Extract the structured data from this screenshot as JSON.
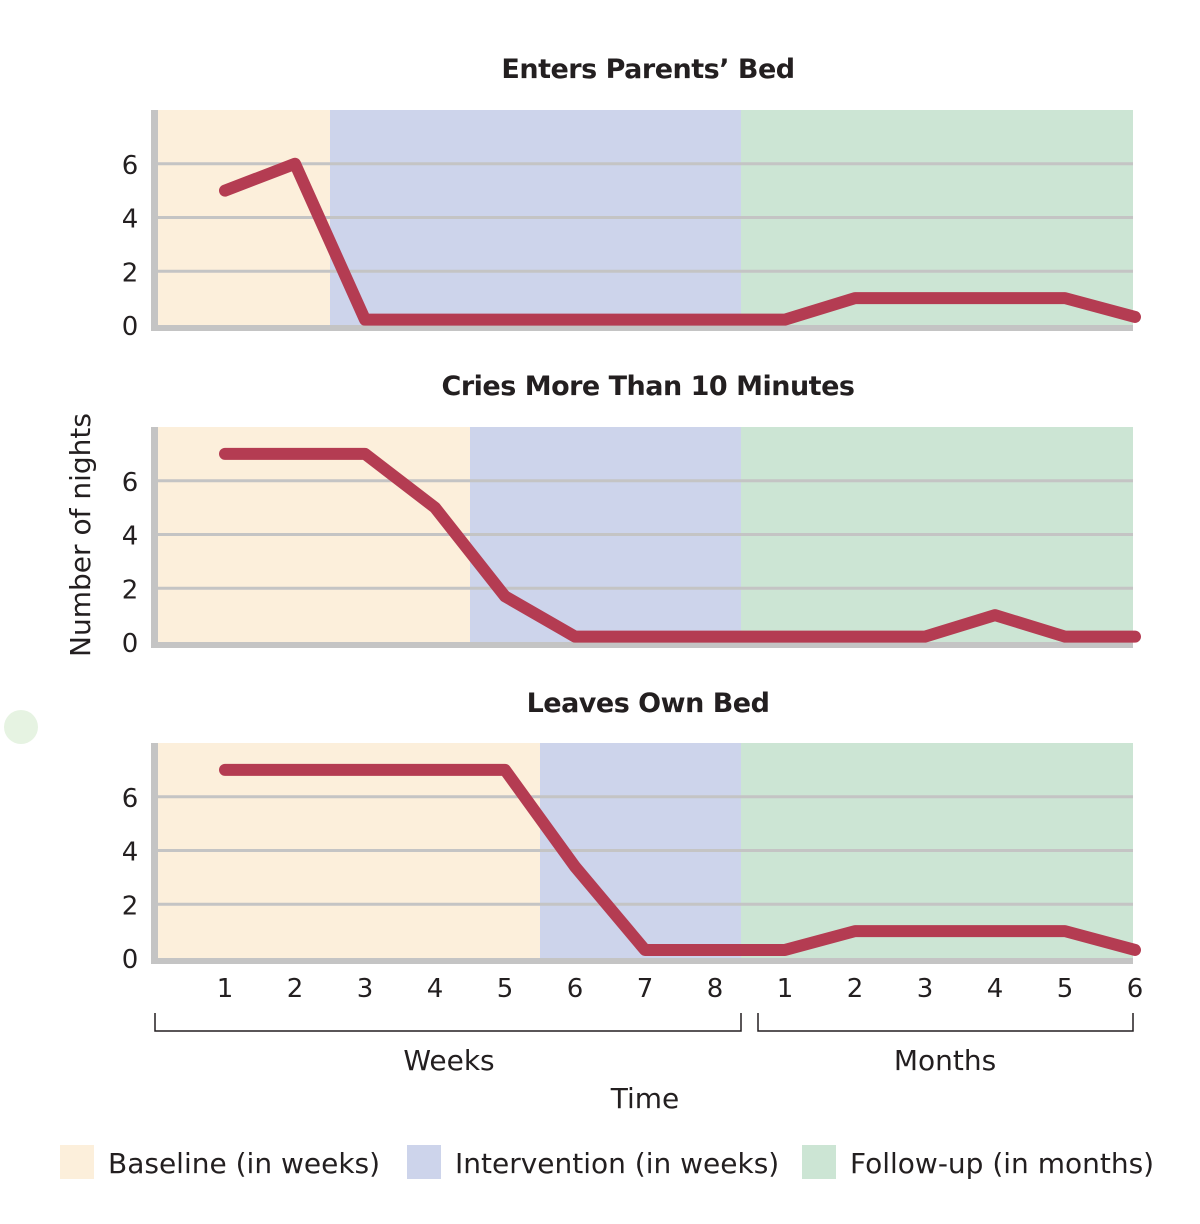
{
  "chart_data": {
    "type": "line",
    "ylabel": "Number of nights",
    "xlabel": "Time",
    "x_groups": [
      {
        "label": "Weeks",
        "ticks": [
          "1",
          "2",
          "3",
          "4",
          "5",
          "6",
          "7",
          "8"
        ]
      },
      {
        "label": "Months",
        "ticks": [
          "1",
          "2",
          "3",
          "4",
          "5",
          "6"
        ]
      }
    ],
    "x_categories": [
      "W1",
      "W2",
      "W3",
      "W4",
      "W5",
      "W6",
      "W7",
      "W8",
      "M1",
      "M2",
      "M3",
      "M4",
      "M5",
      "M6"
    ],
    "yticks": [
      "0",
      "2",
      "4",
      "6"
    ],
    "ylim": [
      0,
      8
    ],
    "grid": true,
    "colors": {
      "line": "#b43c52",
      "baseline": "#fcefdb",
      "intervention": "#cdd4eb",
      "followup": "#cce5d4",
      "grid": "#c4c4c4",
      "axis": "#c4c4c4"
    },
    "legend": {
      "placement": "bottom",
      "items": [
        {
          "label": "Baseline (in weeks)",
          "phase": "baseline"
        },
        {
          "label": "Intervention (in weeks)",
          "phase": "intervention"
        },
        {
          "label": "Follow-up (in months)",
          "phase": "followup"
        }
      ]
    },
    "panels": [
      {
        "title": "Enters Parents’ Bed",
        "baseline_end_week": 2.5,
        "intervention_end": 8.4,
        "values": [
          5,
          6,
          0.2,
          0.2,
          0.2,
          0.2,
          0.2,
          0.2,
          0.2,
          1,
          1,
          1,
          1,
          0.3
        ]
      },
      {
        "title": "Cries More Than 10 Minutes",
        "baseline_end_week": 4.5,
        "intervention_end": 8.4,
        "values": [
          7,
          7,
          7,
          5,
          1.7,
          0.2,
          0.2,
          0.2,
          0.2,
          0.2,
          0.2,
          1,
          0.2,
          0.2
        ]
      },
      {
        "title": "Leaves Own Bed",
        "baseline_end_week": 5.5,
        "intervention_end": 8.4,
        "values": [
          7,
          7,
          7,
          7,
          7,
          3.4,
          0.3,
          0.3,
          0.3,
          1,
          1,
          1,
          1,
          0.3
        ]
      }
    ]
  }
}
